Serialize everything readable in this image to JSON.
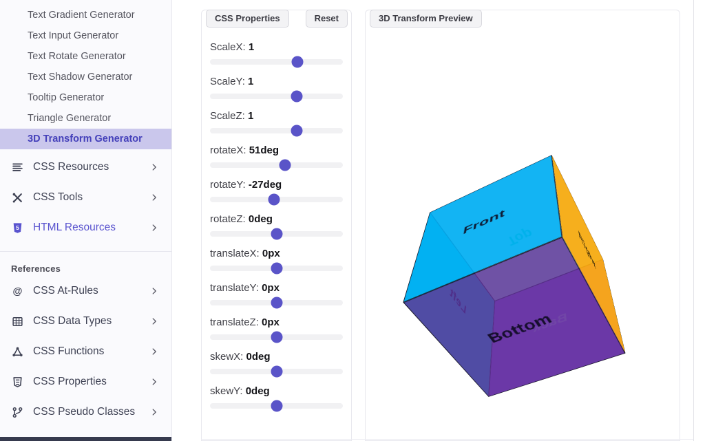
{
  "sidebar": {
    "generators": [
      {
        "label": "Text Gradient Generator",
        "selected": false
      },
      {
        "label": "Text Input Generator",
        "selected": false
      },
      {
        "label": "Text Rotate Generator",
        "selected": false
      },
      {
        "label": "Text Shadow Generator",
        "selected": false
      },
      {
        "label": "Tooltip Generator",
        "selected": false
      },
      {
        "label": "Triangle Generator",
        "selected": false
      },
      {
        "label": "3D Transform Generator",
        "selected": true
      }
    ],
    "sections": [
      {
        "icon": "list-icon",
        "label": "CSS Resources",
        "active": false
      },
      {
        "icon": "tools-icon",
        "label": "CSS Tools",
        "active": false
      },
      {
        "icon": "html5-icon",
        "label": "HTML Resources",
        "active": true
      }
    ],
    "references_heading": "References",
    "references": [
      {
        "icon": "at-icon",
        "label": "CSS At-Rules"
      },
      {
        "icon": "table-icon",
        "label": "CSS Data Types"
      },
      {
        "icon": "shapes-icon",
        "label": "CSS Functions"
      },
      {
        "icon": "css3-icon",
        "label": "CSS Properties"
      },
      {
        "icon": "branch-icon",
        "label": "CSS Pseudo Classes"
      }
    ]
  },
  "properties_panel": {
    "tab_label": "CSS Properties",
    "reset_label": "Reset",
    "sliders": [
      {
        "name": "ScaleX:",
        "value": "1",
        "percent": 66
      },
      {
        "name": "ScaleY:",
        "value": "1",
        "percent": 65.5
      },
      {
        "name": "ScaleZ:",
        "value": "1",
        "percent": 65.5
      },
      {
        "name": "rotateX:",
        "value": "51deg",
        "percent": 56.7
      },
      {
        "name": "rotateY:",
        "value": "-27deg",
        "percent": 48
      },
      {
        "name": "rotateZ:",
        "value": "0deg",
        "percent": 50
      },
      {
        "name": "translateX:",
        "value": "0px",
        "percent": 50
      },
      {
        "name": "translateY:",
        "value": "0px",
        "percent": 50.5
      },
      {
        "name": "translateZ:",
        "value": "0px",
        "percent": 50.5
      },
      {
        "name": "skewX:",
        "value": "0deg",
        "percent": 50.5
      },
      {
        "name": "skewY:",
        "value": "0deg",
        "percent": 50
      }
    ]
  },
  "preview_panel": {
    "tab_label": "3D Transform Preview"
  },
  "cube": {
    "rotateX_deg": 51,
    "rotateY_deg": -27,
    "faces": [
      {
        "id": "front",
        "label": "Front",
        "bg": "rgba(0,172,243,0.90)",
        "fg": "#0e1b33"
      },
      {
        "id": "back",
        "label": "Back",
        "bg": "rgba(140,62,245,0.75)",
        "fg": "#cdbcf5"
      },
      {
        "id": "left",
        "label": "Left",
        "bg": "rgba(0,217,229,0.92)",
        "fg": "#0e2f4a"
      },
      {
        "id": "right",
        "label": "Right",
        "bg": "rgba(251,168,11,0.92)",
        "fg": "#33250a"
      },
      {
        "id": "top",
        "label": "Top",
        "bg": "rgba(0,255,179,0.25)",
        "fg": "#00d9a0"
      },
      {
        "id": "bottom",
        "label": "Bottom",
        "bg": "rgba(93,44,149,0.82)",
        "fg": "#160e2d"
      }
    ]
  },
  "colors": {
    "slider_thumb": "#5a54c8",
    "selected_item_bg": "#cac7ec",
    "selected_item_text": "#4440ba",
    "accent": "#5a54cf",
    "footer_strip": "#363a4e"
  }
}
